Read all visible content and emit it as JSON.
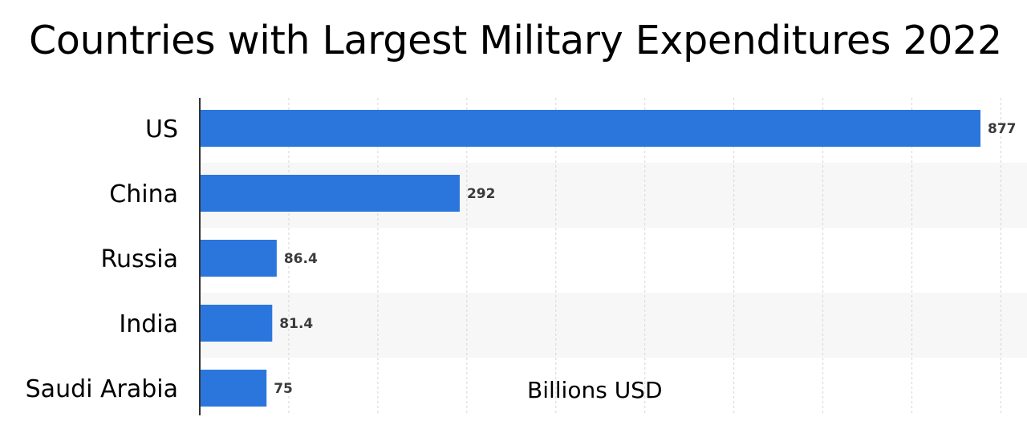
{
  "chart_data": {
    "type": "bar",
    "orientation": "horizontal",
    "title": "Countries with Largest Military Expenditures 2022",
    "unit_label": "Billions USD",
    "categories": [
      "US",
      "China",
      "Russia",
      "India",
      "Saudi Arabia"
    ],
    "values": [
      877,
      292,
      86.4,
      81.4,
      75
    ],
    "value_labels": [
      "877",
      "292",
      "86.4",
      "81.4",
      "75"
    ],
    "xlim": [
      0,
      900
    ],
    "grid": true,
    "legend": "none",
    "colors": {
      "bar": "#2a76dd",
      "band": "#f7f7f7",
      "grid": "#d6d6d6",
      "axis": "#333333"
    }
  }
}
